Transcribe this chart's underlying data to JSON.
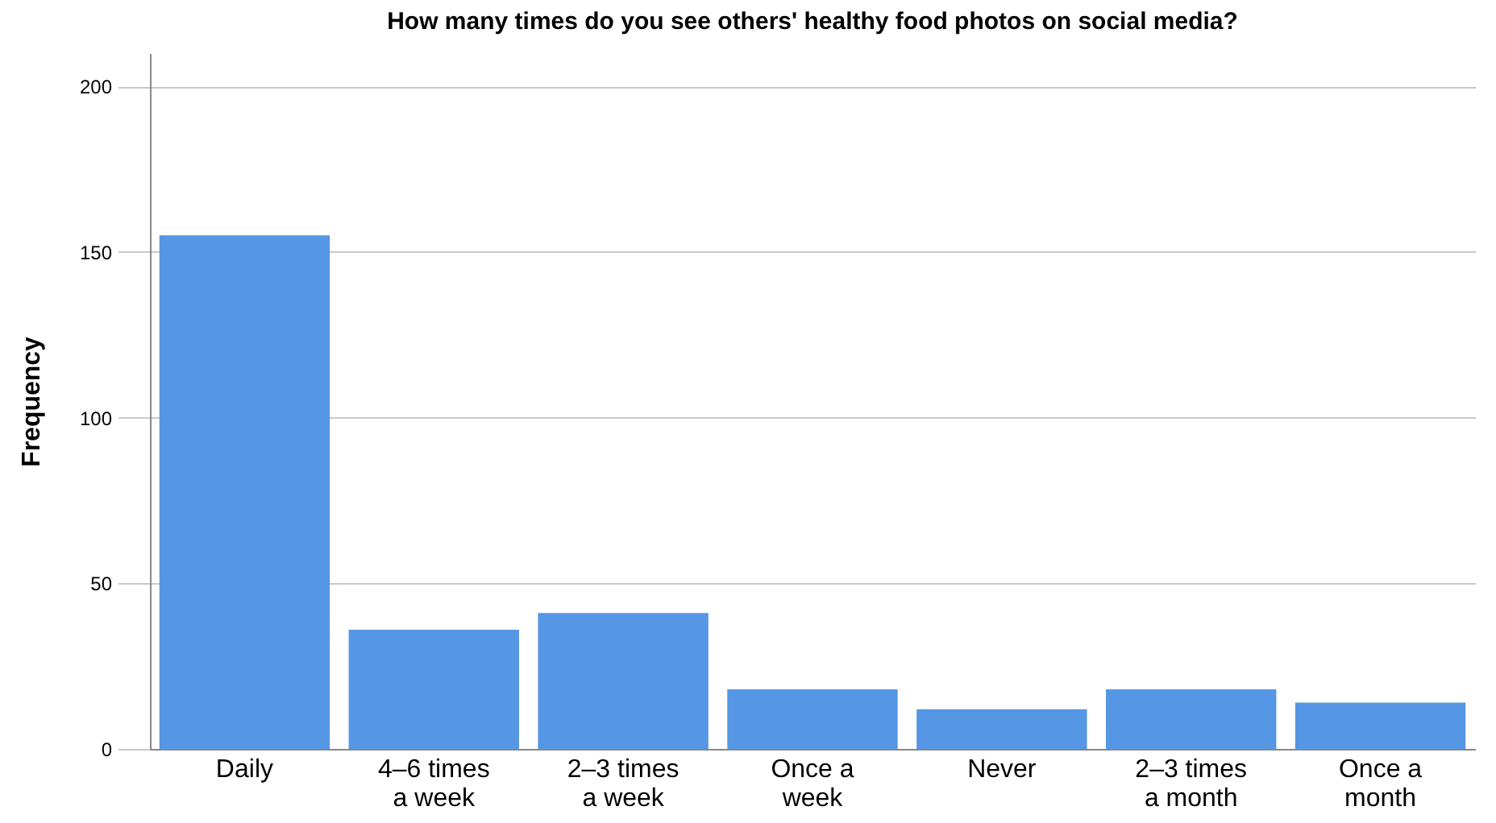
{
  "chart_data": {
    "type": "bar",
    "title": "How many times do you see others' healthy food photos on social media?",
    "ylabel": "Frequency",
    "categories": [
      "Daily",
      "4–6 times a week",
      "2–3 times a week",
      "Once a week",
      "Never",
      "2–3 times a month",
      "Once a month"
    ],
    "values": [
      155,
      36,
      41,
      18,
      12,
      18,
      14
    ],
    "color": "#5596e5",
    "ylim": [
      0,
      210
    ],
    "yticks": [
      0,
      50,
      100,
      150,
      200
    ],
    "grid": "y"
  }
}
